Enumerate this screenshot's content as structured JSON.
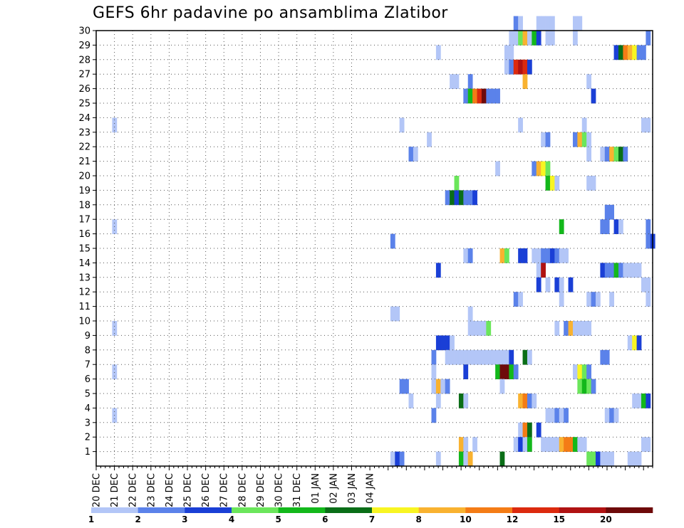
{
  "chart_data": {
    "type": "heatmap",
    "title": "GEFS 6hr padavine po ansamblima Zlatibor",
    "x_tick_labels": [
      "20 DEC",
      "21 DEC",
      "22 DEC",
      "23 DEC",
      "24 DEC",
      "25 DEC",
      "26 DEC",
      "27 DEC",
      "28 DEC",
      "29 DEC",
      "30 DEC",
      "31 DEC",
      "01 JAN",
      "02 JAN",
      "03 JAN",
      "04 JAN"
    ],
    "x_step": "6hr",
    "y_tick_labels": [
      1,
      2,
      3,
      4,
      5,
      6,
      7,
      8,
      9,
      10,
      11,
      12,
      13,
      14,
      15,
      16,
      17,
      18,
      19,
      20,
      21,
      22,
      23,
      24,
      25,
      26,
      27,
      28,
      29,
      30
    ],
    "ylim": [
      0,
      30
    ],
    "grid": true,
    "legend_position": "bottom",
    "legend": {
      "colors": [
        "#b3c6f7",
        "#5b82ea",
        "#1a3fd6",
        "#6be65b",
        "#13b81b",
        "#0a6e17",
        "#f8f522",
        "#f9b230",
        "#f47c16",
        "#dc2a0e",
        "#b01212",
        "#6e0a0a"
      ],
      "labels": [
        "1",
        "2",
        "3",
        "4",
        "5",
        "6",
        "7",
        "8",
        "10",
        "12",
        "15",
        "20"
      ]
    },
    "cells": [
      [
        30,
        92,
        2
      ],
      [
        30,
        93,
        1
      ],
      [
        30,
        97,
        1
      ],
      [
        30,
        98,
        1
      ],
      [
        30,
        99,
        1
      ],
      [
        30,
        100,
        1
      ],
      [
        30,
        105,
        1
      ],
      [
        30,
        106,
        1
      ],
      [
        29,
        91,
        1
      ],
      [
        29,
        92,
        1
      ],
      [
        29,
        93,
        4
      ],
      [
        29,
        94,
        8
      ],
      [
        29,
        95,
        1
      ],
      [
        29,
        96,
        5
      ],
      [
        29,
        97,
        3
      ],
      [
        29,
        99,
        1
      ],
      [
        29,
        100,
        1
      ],
      [
        29,
        105,
        1
      ],
      [
        29,
        121,
        2
      ],
      [
        28,
        75,
        1
      ],
      [
        28,
        90,
        1
      ],
      [
        28,
        91,
        1
      ],
      [
        28,
        114,
        3
      ],
      [
        28,
        115,
        6
      ],
      [
        28,
        116,
        9
      ],
      [
        28,
        117,
        8
      ],
      [
        28,
        118,
        7
      ],
      [
        28,
        119,
        2
      ],
      [
        28,
        120,
        2
      ],
      [
        27,
        90,
        1
      ],
      [
        27,
        91,
        2
      ],
      [
        27,
        92,
        10
      ],
      [
        27,
        93,
        11
      ],
      [
        27,
        94,
        10
      ],
      [
        27,
        95,
        3
      ],
      [
        26,
        78,
        1
      ],
      [
        26,
        79,
        1
      ],
      [
        26,
        82,
        2
      ],
      [
        26,
        94,
        8
      ],
      [
        26,
        108,
        1
      ],
      [
        25,
        81,
        2
      ],
      [
        25,
        82,
        5
      ],
      [
        25,
        83,
        9
      ],
      [
        25,
        84,
        10
      ],
      [
        25,
        85,
        12
      ],
      [
        25,
        86,
        2
      ],
      [
        25,
        87,
        2
      ],
      [
        25,
        88,
        2
      ],
      [
        25,
        109,
        3
      ],
      [
        23,
        4,
        1
      ],
      [
        23,
        67,
        1
      ],
      [
        23,
        93,
        1
      ],
      [
        23,
        107,
        1
      ],
      [
        23,
        120,
        1
      ],
      [
        23,
        121,
        1
      ],
      [
        22,
        73,
        1
      ],
      [
        22,
        98,
        1
      ],
      [
        22,
        99,
        2
      ],
      [
        22,
        105,
        2
      ],
      [
        22,
        106,
        8
      ],
      [
        22,
        107,
        4
      ],
      [
        22,
        108,
        1
      ],
      [
        21,
        69,
        2
      ],
      [
        21,
        70,
        1
      ],
      [
        21,
        108,
        1
      ],
      [
        21,
        111,
        1
      ],
      [
        21,
        112,
        2
      ],
      [
        21,
        113,
        8
      ],
      [
        21,
        114,
        4
      ],
      [
        21,
        115,
        6
      ],
      [
        21,
        116,
        2
      ],
      [
        20,
        88,
        1
      ],
      [
        20,
        96,
        2
      ],
      [
        20,
        97,
        8
      ],
      [
        20,
        98,
        7
      ],
      [
        20,
        99,
        4
      ],
      [
        19,
        79,
        4
      ],
      [
        19,
        99,
        5
      ],
      [
        19,
        100,
        7
      ],
      [
        19,
        101,
        1
      ],
      [
        19,
        108,
        1
      ],
      [
        19,
        109,
        1
      ],
      [
        18,
        77,
        2
      ],
      [
        18,
        78,
        6
      ],
      [
        18,
        79,
        3
      ],
      [
        18,
        80,
        6
      ],
      [
        18,
        81,
        2
      ],
      [
        18,
        82,
        2
      ],
      [
        18,
        83,
        3
      ],
      [
        17,
        112,
        2
      ],
      [
        17,
        113,
        2
      ],
      [
        16,
        4,
        1
      ],
      [
        16,
        102,
        5
      ],
      [
        16,
        111,
        2
      ],
      [
        16,
        112,
        2
      ],
      [
        16,
        114,
        3
      ],
      [
        16,
        115,
        1
      ],
      [
        16,
        121,
        2
      ],
      [
        15,
        65,
        2
      ],
      [
        15,
        121,
        2
      ],
      [
        15,
        122,
        3
      ],
      [
        14,
        81,
        1
      ],
      [
        14,
        82,
        2
      ],
      [
        14,
        89,
        8
      ],
      [
        14,
        90,
        4
      ],
      [
        14,
        93,
        3
      ],
      [
        14,
        94,
        3
      ],
      [
        14,
        96,
        1
      ],
      [
        14,
        97,
        1
      ],
      [
        14,
        98,
        2
      ],
      [
        14,
        99,
        2
      ],
      [
        14,
        100,
        3
      ],
      [
        14,
        101,
        2
      ],
      [
        14,
        102,
        1
      ],
      [
        14,
        103,
        1
      ],
      [
        13,
        75,
        3
      ],
      [
        13,
        97,
        1
      ],
      [
        13,
        98,
        11
      ],
      [
        13,
        111,
        3
      ],
      [
        13,
        112,
        2
      ],
      [
        13,
        113,
        2
      ],
      [
        13,
        114,
        5
      ],
      [
        13,
        115,
        2
      ],
      [
        13,
        116,
        1
      ],
      [
        13,
        117,
        1
      ],
      [
        13,
        118,
        1
      ],
      [
        13,
        119,
        1
      ],
      [
        12,
        97,
        3
      ],
      [
        12,
        99,
        1
      ],
      [
        12,
        101,
        3
      ],
      [
        12,
        102,
        1
      ],
      [
        12,
        104,
        3
      ],
      [
        12,
        120,
        1
      ],
      [
        12,
        121,
        1
      ],
      [
        11,
        92,
        2
      ],
      [
        11,
        93,
        1
      ],
      [
        11,
        102,
        1
      ],
      [
        11,
        108,
        1
      ],
      [
        11,
        109,
        2
      ],
      [
        11,
        110,
        1
      ],
      [
        11,
        113,
        1
      ],
      [
        11,
        121,
        1
      ],
      [
        10,
        65,
        1
      ],
      [
        10,
        66,
        1
      ],
      [
        10,
        82,
        1
      ],
      [
        9,
        4,
        1
      ],
      [
        9,
        82,
        1
      ],
      [
        9,
        83,
        1
      ],
      [
        9,
        84,
        1
      ],
      [
        9,
        85,
        1
      ],
      [
        9,
        86,
        4
      ],
      [
        9,
        101,
        1
      ],
      [
        9,
        103,
        2
      ],
      [
        9,
        104,
        8
      ],
      [
        9,
        105,
        1
      ],
      [
        9,
        106,
        1
      ],
      [
        9,
        107,
        1
      ],
      [
        9,
        108,
        1
      ],
      [
        8,
        75,
        3
      ],
      [
        8,
        76,
        3
      ],
      [
        8,
        77,
        3
      ],
      [
        8,
        78,
        1
      ],
      [
        8,
        117,
        1
      ],
      [
        8,
        118,
        7
      ],
      [
        8,
        119,
        3
      ],
      [
        7,
        74,
        2
      ],
      [
        7,
        77,
        1
      ],
      [
        7,
        78,
        1
      ],
      [
        7,
        79,
        1
      ],
      [
        7,
        80,
        1
      ],
      [
        7,
        81,
        1
      ],
      [
        7,
        82,
        1
      ],
      [
        7,
        83,
        1
      ],
      [
        7,
        84,
        1
      ],
      [
        7,
        85,
        1
      ],
      [
        7,
        86,
        1
      ],
      [
        7,
        87,
        1
      ],
      [
        7,
        88,
        1
      ],
      [
        7,
        89,
        1
      ],
      [
        7,
        90,
        1
      ],
      [
        7,
        91,
        3
      ],
      [
        7,
        94,
        6
      ],
      [
        7,
        95,
        1
      ],
      [
        7,
        111,
        2
      ],
      [
        7,
        112,
        2
      ],
      [
        6,
        4,
        1
      ],
      [
        6,
        74,
        1
      ],
      [
        6,
        81,
        3
      ],
      [
        6,
        88,
        5
      ],
      [
        6,
        89,
        12
      ],
      [
        6,
        90,
        12
      ],
      [
        6,
        91,
        5
      ],
      [
        6,
        92,
        2
      ],
      [
        6,
        105,
        1
      ],
      [
        6,
        106,
        7
      ],
      [
        6,
        107,
        4
      ],
      [
        6,
        108,
        2
      ],
      [
        5,
        67,
        2
      ],
      [
        5,
        68,
        2
      ],
      [
        5,
        74,
        1
      ],
      [
        5,
        75,
        8
      ],
      [
        5,
        76,
        1
      ],
      [
        5,
        77,
        2
      ],
      [
        5,
        89,
        1
      ],
      [
        5,
        106,
        4
      ],
      [
        5,
        107,
        5
      ],
      [
        5,
        108,
        4
      ],
      [
        5,
        109,
        2
      ],
      [
        4,
        69,
        1
      ],
      [
        4,
        75,
        1
      ],
      [
        4,
        80,
        6
      ],
      [
        4,
        81,
        1
      ],
      [
        4,
        93,
        8
      ],
      [
        4,
        94,
        9
      ],
      [
        4,
        95,
        2
      ],
      [
        4,
        96,
        1
      ],
      [
        4,
        118,
        1
      ],
      [
        4,
        119,
        1
      ],
      [
        4,
        120,
        5
      ],
      [
        4,
        121,
        3
      ],
      [
        3,
        4,
        1
      ],
      [
        3,
        74,
        2
      ],
      [
        3,
        99,
        1
      ],
      [
        3,
        100,
        1
      ],
      [
        3,
        101,
        2
      ],
      [
        3,
        102,
        1
      ],
      [
        3,
        103,
        2
      ],
      [
        3,
        112,
        1
      ],
      [
        3,
        113,
        2
      ],
      [
        3,
        114,
        1
      ],
      [
        2,
        93,
        1
      ],
      [
        2,
        94,
        9
      ],
      [
        2,
        95,
        6
      ],
      [
        2,
        97,
        3
      ],
      [
        1,
        80,
        8
      ],
      [
        1,
        81,
        1
      ],
      [
        1,
        83,
        1
      ],
      [
        1,
        92,
        1
      ],
      [
        1,
        93,
        3
      ],
      [
        1,
        94,
        1
      ],
      [
        1,
        95,
        5
      ],
      [
        1,
        98,
        1
      ],
      [
        1,
        99,
        1
      ],
      [
        1,
        100,
        1
      ],
      [
        1,
        101,
        1
      ],
      [
        1,
        102,
        8
      ],
      [
        1,
        103,
        9
      ],
      [
        1,
        104,
        9
      ],
      [
        1,
        105,
        5
      ],
      [
        1,
        106,
        1
      ],
      [
        1,
        107,
        1
      ],
      [
        1,
        120,
        1
      ],
      [
        1,
        121,
        1
      ],
      [
        0,
        65,
        1
      ],
      [
        0,
        66,
        3
      ],
      [
        0,
        67,
        2
      ],
      [
        0,
        75,
        1
      ],
      [
        0,
        80,
        5
      ],
      [
        0,
        81,
        1
      ],
      [
        0,
        82,
        8
      ],
      [
        0,
        89,
        6
      ],
      [
        0,
        108,
        4
      ],
      [
        0,
        109,
        4
      ],
      [
        0,
        110,
        3
      ],
      [
        0,
        111,
        1
      ],
      [
        0,
        112,
        1
      ],
      [
        0,
        113,
        1
      ],
      [
        0,
        117,
        1
      ],
      [
        0,
        118,
        1
      ],
      [
        0,
        119,
        1
      ]
    ]
  }
}
